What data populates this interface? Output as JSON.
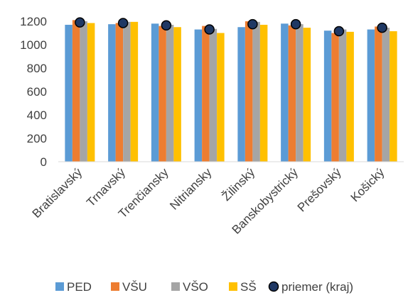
{
  "chart_data": {
    "type": "bar",
    "categories": [
      "Bratislavský",
      "Trnavský",
      "Trenčiansky",
      "Nitriansky",
      "Žilinský",
      "Banskobystrický",
      "Prešovský",
      "Košický"
    ],
    "series": [
      {
        "name": "PED",
        "color": "#5B9BD5",
        "values": [
          1170,
          1175,
          1180,
          1130,
          1150,
          1180,
          1120,
          1130
        ]
      },
      {
        "name": "VŠU",
        "color": "#ED7D31",
        "values": [
          1210,
          1185,
          1160,
          1160,
          1200,
          1165,
          1100,
          1155
        ]
      },
      {
        "name": "VŠO",
        "color": "#A5A5A5",
        "values": [
          1200,
          1195,
          1170,
          1135,
          1195,
          1175,
          1130,
          1145
        ]
      },
      {
        "name": "SŠ",
        "color": "#FFC000",
        "values": [
          1185,
          1195,
          1150,
          1100,
          1170,
          1145,
          1110,
          1115
        ]
      }
    ],
    "average": {
      "name": "priemer (kraj)",
      "color": "#1F3864",
      "values": [
        1190,
        1185,
        1165,
        1130,
        1175,
        1175,
        1115,
        1145
      ]
    },
    "ylim": [
      0,
      1200
    ],
    "yticks": [
      0,
      200,
      400,
      600,
      800,
      1000,
      1200
    ],
    "legend_position": "bottom",
    "grid": false
  }
}
